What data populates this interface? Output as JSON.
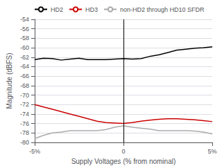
{
  "chart_data": {
    "type": "line",
    "xlabel": "Supply Voltages (% from nominal)",
    "ylabel": "Magnitude (dBFS)",
    "x": [
      -5,
      -4.5,
      -4,
      -3.5,
      -3,
      -2.5,
      -2,
      -1.5,
      -1,
      -0.5,
      0,
      0.5,
      1,
      1.5,
      2,
      2.5,
      3,
      3.5,
      4,
      4.5,
      5
    ],
    "series": [
      {
        "name": "HD2",
        "color": "#000000",
        "values": [
          -62.5,
          -62.2,
          -62.3,
          -62.6,
          -62.4,
          -62.2,
          -62.5,
          -62.5,
          -62.5,
          -62.4,
          -62.3,
          -62.4,
          -62.3,
          -61.8,
          -61.5,
          -61.0,
          -60.5,
          -60.3,
          -60.1,
          -60.0,
          -59.8
        ]
      },
      {
        "name": "HD3",
        "color": "#cc0000",
        "values": [
          -72.0,
          -72.5,
          -73.0,
          -73.5,
          -74.0,
          -74.5,
          -75.0,
          -75.5,
          -75.8,
          -75.9,
          -76.0,
          -75.8,
          -75.5,
          -75.3,
          -75.1,
          -75.0,
          -75.0,
          -75.1,
          -75.2,
          -75.4,
          -75.6
        ]
      },
      {
        "name": "non-HD2 through HD10 SFDR",
        "color": "#aaaaaa",
        "values": [
          -79.2,
          -78.5,
          -78.0,
          -77.8,
          -77.5,
          -77.5,
          -77.5,
          -77.5,
          -77.3,
          -76.8,
          -76.5,
          -76.8,
          -77.0,
          -77.2,
          -77.5,
          -77.5,
          -77.5,
          -77.5,
          -77.6,
          -77.8,
          -78.2
        ]
      }
    ],
    "xlim": [
      -5,
      5
    ],
    "xticks": [
      {
        "value": -5,
        "label": "-5%"
      },
      0,
      {
        "value": 5,
        "label": "5%"
      }
    ],
    "ylim": [
      -80,
      -54
    ],
    "yticks": [
      -80,
      -78,
      -76,
      -74,
      -72,
      -70,
      -68,
      -66,
      -64,
      -62,
      -60,
      -58,
      -56,
      -54
    ],
    "vlines": [
      0
    ],
    "grid": true,
    "legend": "upper left"
  }
}
